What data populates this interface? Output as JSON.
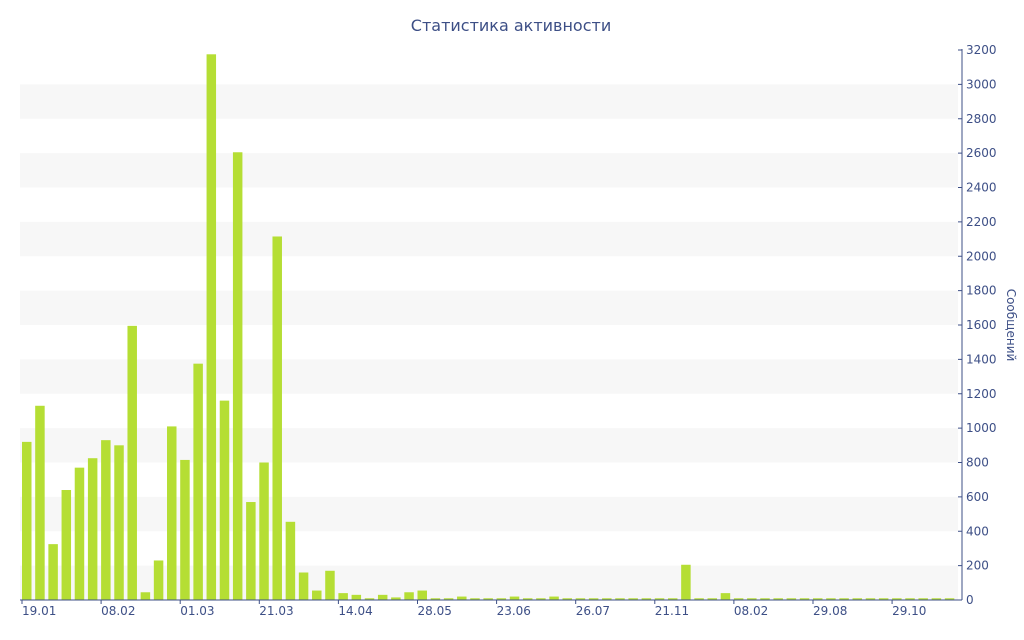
{
  "chart_data": {
    "type": "bar",
    "title": "Статистика активности",
    "ylabel": "Сообщений",
    "xlabel": "",
    "ylim": [
      0,
      3200
    ],
    "y_ticks": [
      0,
      200,
      400,
      600,
      800,
      1000,
      1200,
      1400,
      1600,
      1800,
      2000,
      2200,
      2400,
      2600,
      2800,
      3000,
      3200
    ],
    "x_tick_labels": [
      "19.01",
      "08.02",
      "01.03",
      "21.03",
      "14.04",
      "28.05",
      "23.06",
      "26.07",
      "21.11",
      "08.02",
      "29.08",
      "29.10"
    ],
    "values": [
      920,
      1130,
      325,
      640,
      770,
      825,
      930,
      900,
      1595,
      45,
      230,
      1010,
      815,
      1375,
      3175,
      1160,
      2605,
      570,
      800,
      2115,
      455,
      160,
      55,
      170,
      40,
      30,
      10,
      30,
      15,
      45,
      55,
      10,
      10,
      20,
      10,
      10,
      10,
      20,
      10,
      10,
      20,
      10,
      10,
      10,
      10,
      10,
      10,
      10,
      10,
      10,
      205,
      10,
      10,
      40,
      10,
      10,
      10,
      10,
      10,
      10,
      10,
      10,
      10,
      10,
      10,
      10,
      10,
      10,
      10,
      10,
      10
    ],
    "grid": true,
    "bar_color": "#b5de34",
    "stripe_color": "#f7f7f7",
    "text_color": "#3d4f86"
  }
}
